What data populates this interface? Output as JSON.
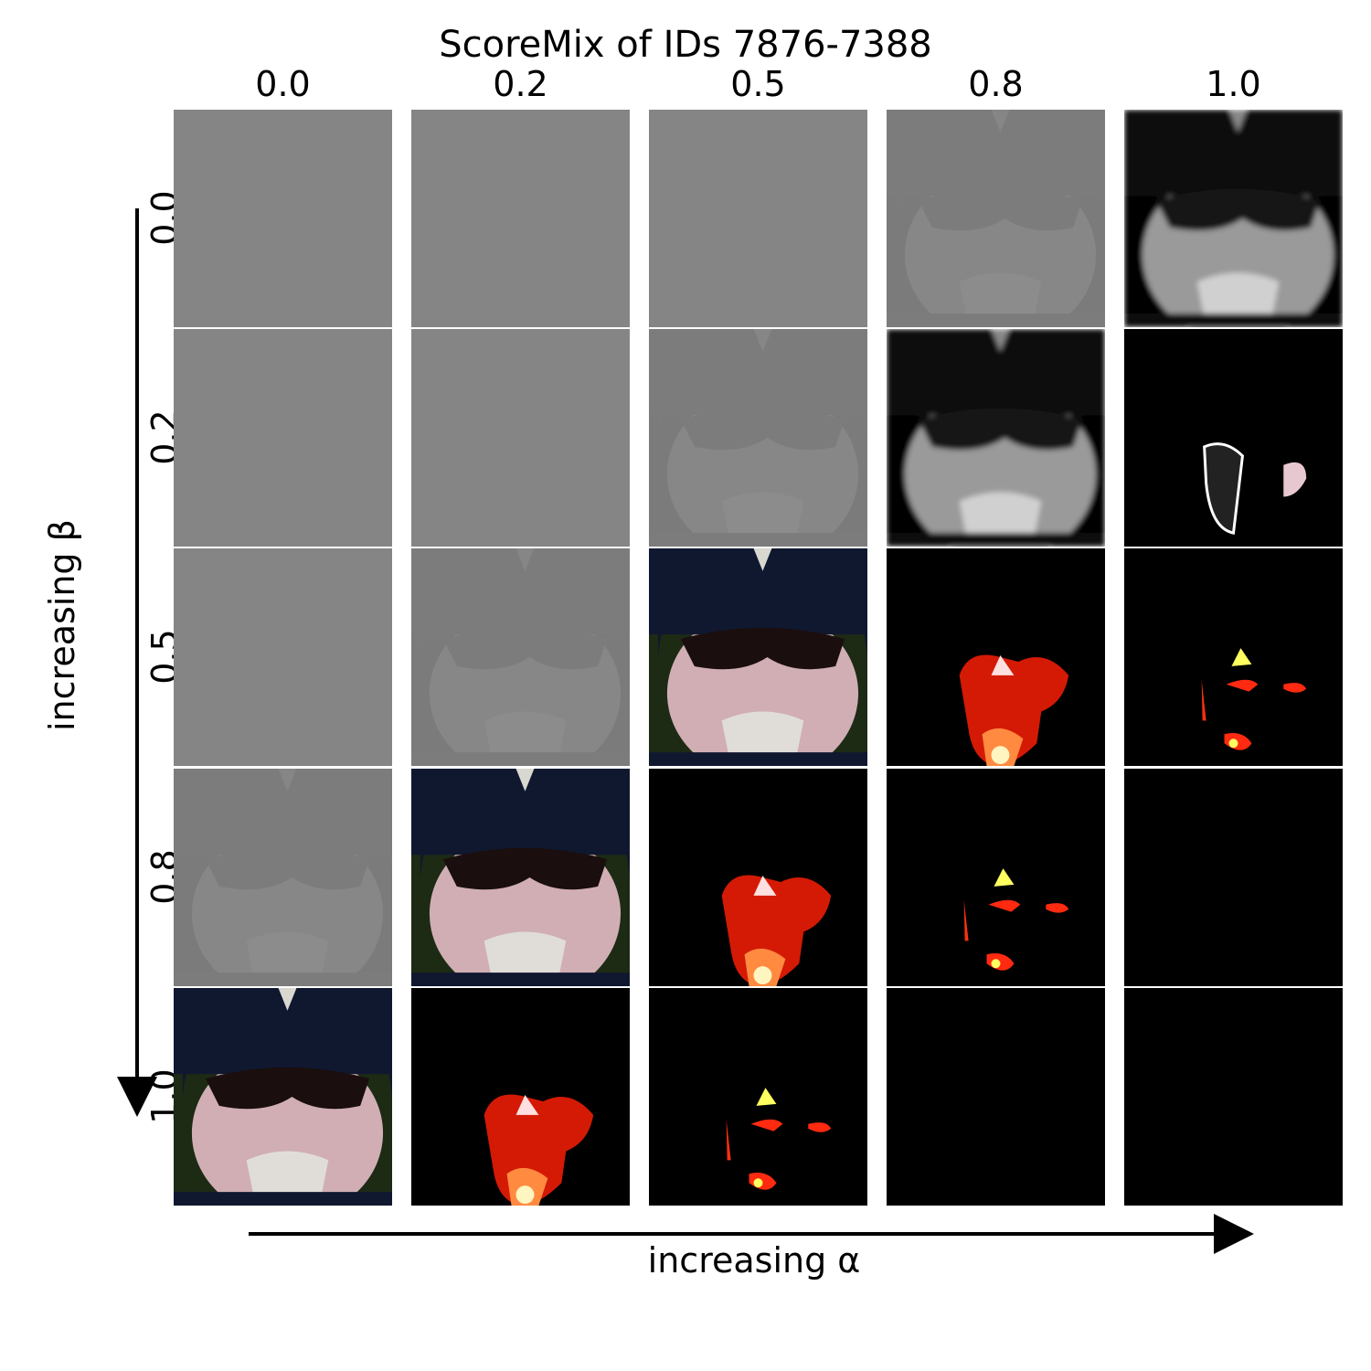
{
  "title": "ScoreMix of IDs 7876-7388",
  "columns": {
    "labels": [
      "0.0",
      "0.2",
      "0.5",
      "0.8",
      "1.0"
    ]
  },
  "rows": {
    "labels": [
      "0.0",
      "0.2",
      "0.5",
      "0.8",
      "1.0"
    ]
  },
  "axes": {
    "x_label": "increasing α",
    "y_label": "increasing β"
  },
  "colors": {
    "gray_cell": "#858585",
    "black_cell": "#000000",
    "highlight": "#ff2a10"
  }
}
